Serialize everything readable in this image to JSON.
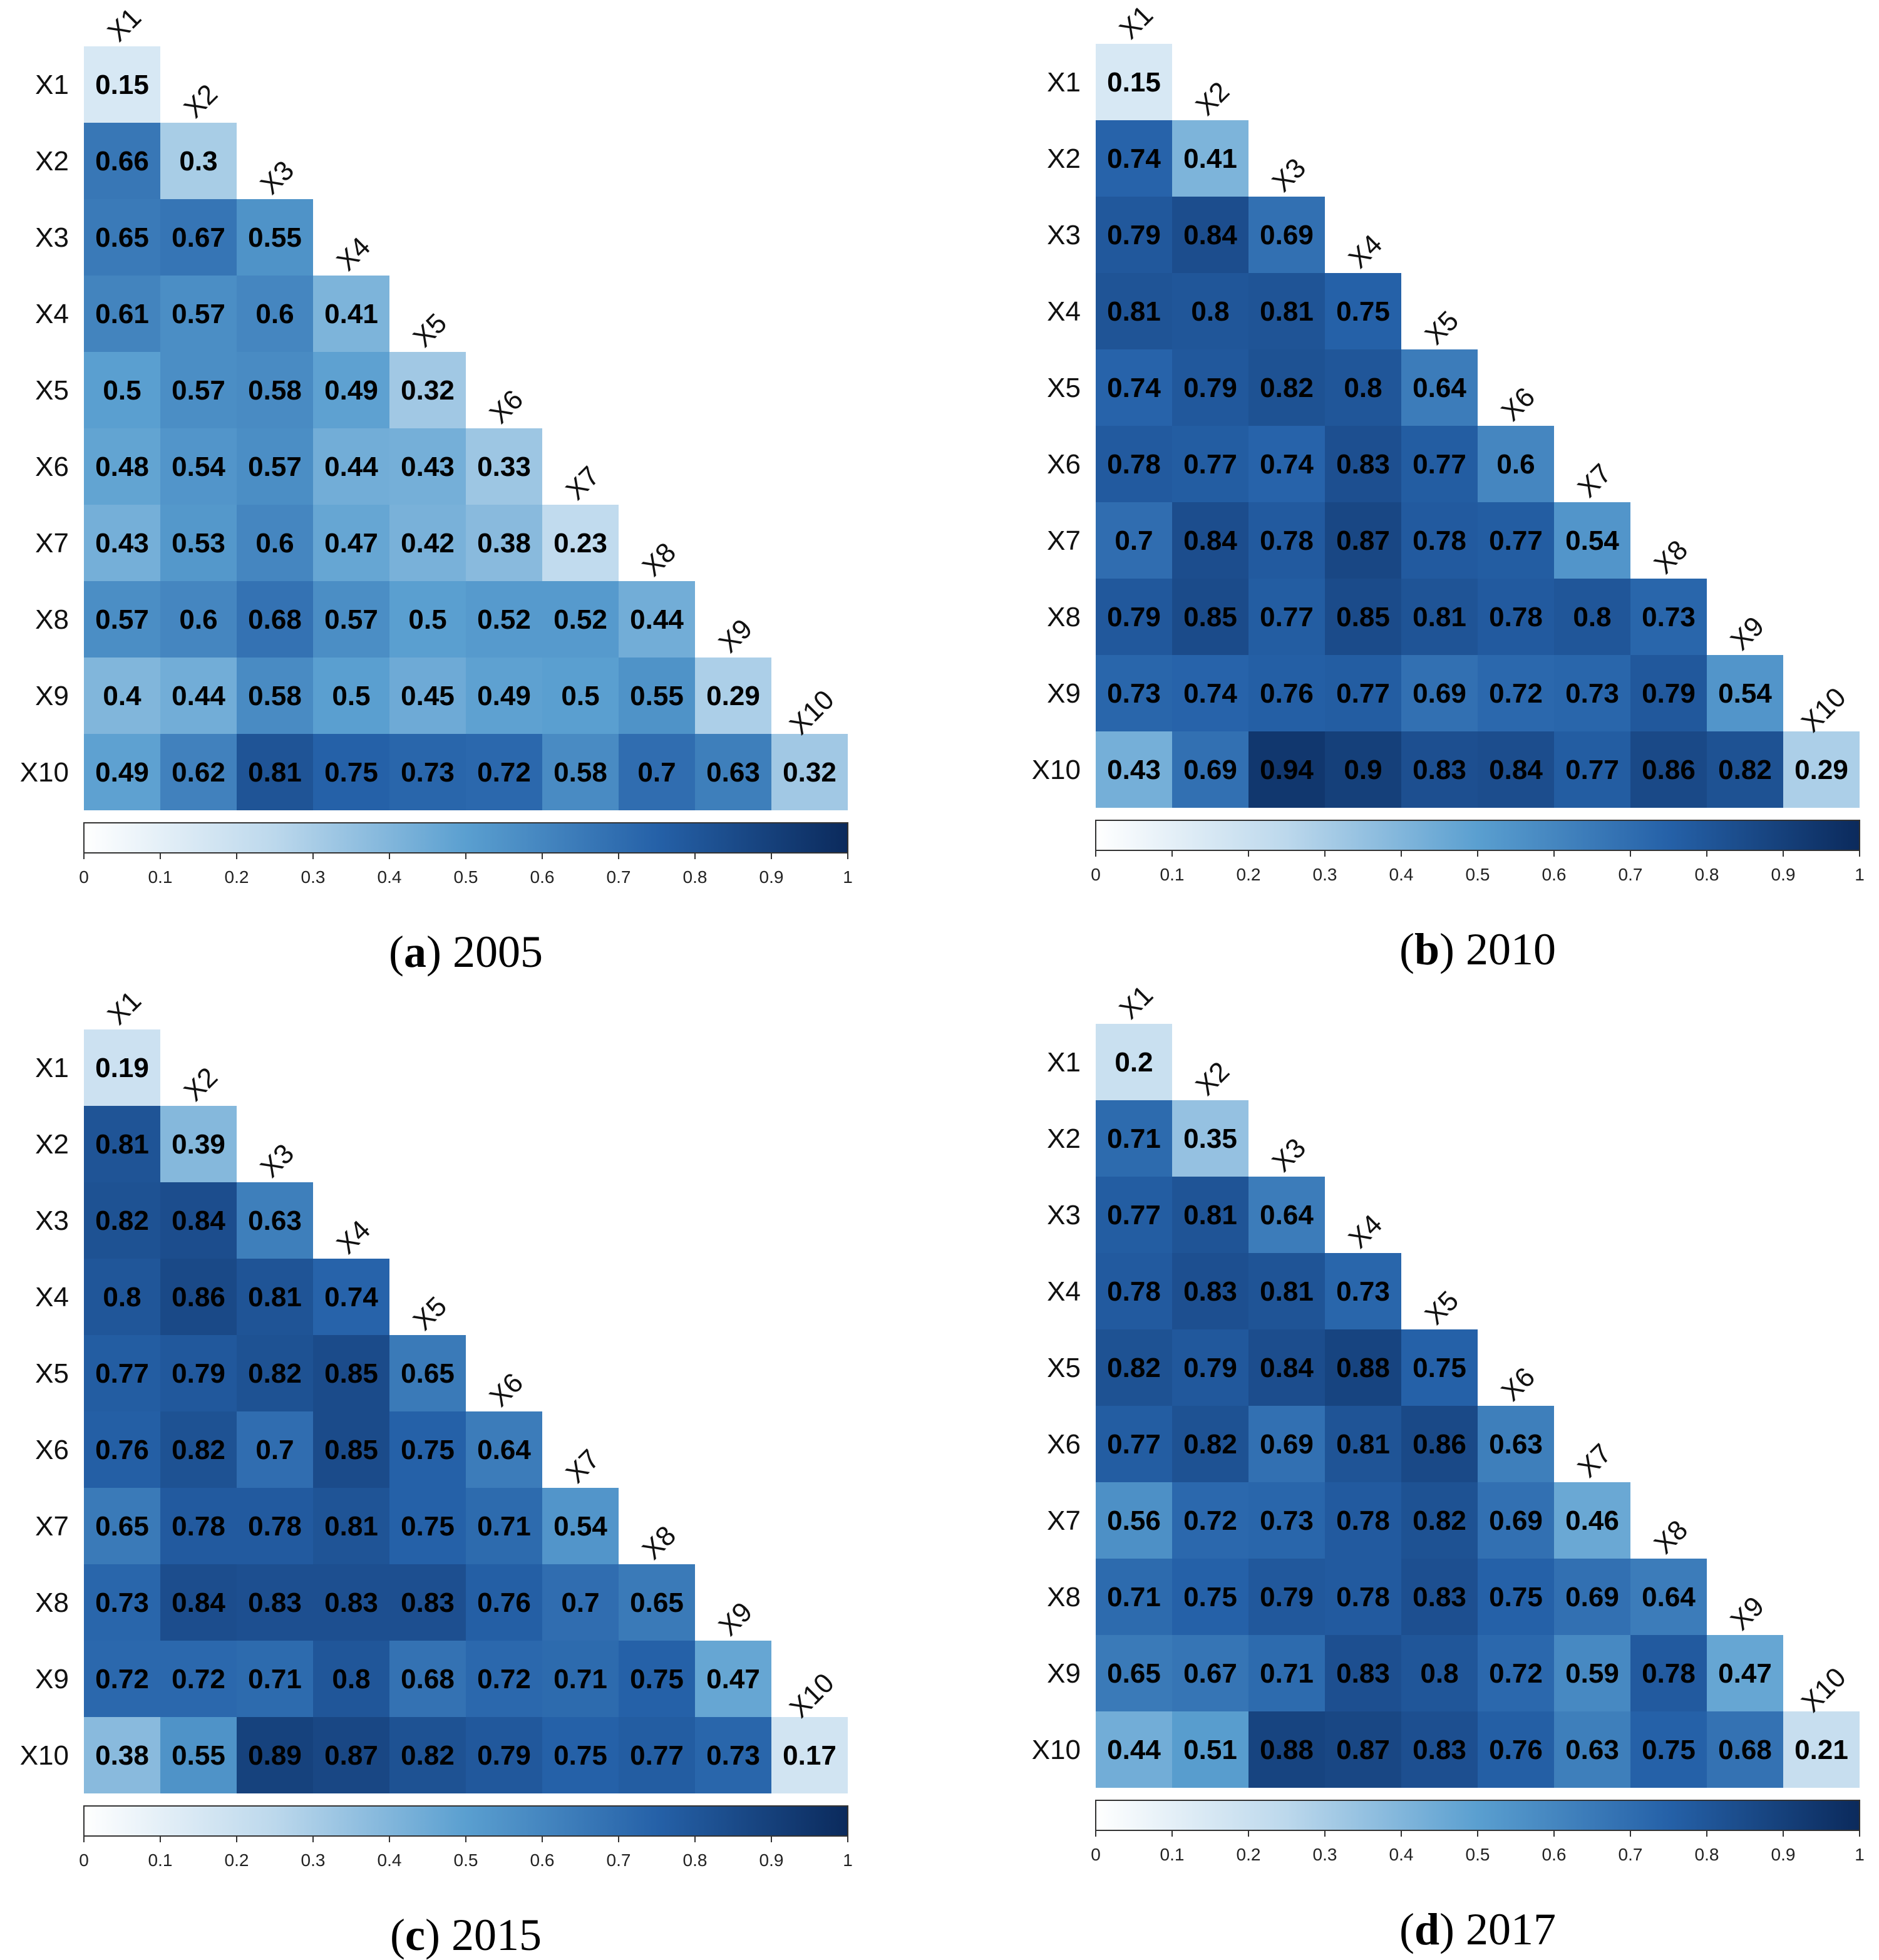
{
  "chart_data": [
    {
      "type": "heatmap",
      "panel_label": "a",
      "title": "2005",
      "labels": [
        "X1",
        "X2",
        "X3",
        "X4",
        "X5",
        "X6",
        "X7",
        "X8",
        "X9",
        "X10"
      ],
      "rows": [
        [
          0.15
        ],
        [
          0.66,
          0.3
        ],
        [
          0.65,
          0.67,
          0.55
        ],
        [
          0.61,
          0.57,
          0.6,
          0.41
        ],
        [
          0.5,
          0.57,
          0.58,
          0.49,
          0.32
        ],
        [
          0.48,
          0.54,
          0.57,
          0.44,
          0.43,
          0.33
        ],
        [
          0.43,
          0.53,
          0.6,
          0.47,
          0.42,
          0.38,
          0.23
        ],
        [
          0.57,
          0.6,
          0.68,
          0.57,
          0.5,
          0.52,
          0.52,
          0.44
        ],
        [
          0.4,
          0.44,
          0.58,
          0.5,
          0.45,
          0.49,
          0.5,
          0.55,
          0.29
        ],
        [
          0.49,
          0.62,
          0.81,
          0.75,
          0.73,
          0.72,
          0.58,
          0.7,
          0.63,
          0.32
        ]
      ],
      "colorbar": {
        "range": [
          0,
          1
        ],
        "ticks": [
          "0",
          "0.1",
          "0.2",
          "0.3",
          "0.4",
          "0.5",
          "0.6",
          "0.7",
          "0.8",
          "0.9",
          "1"
        ]
      }
    },
    {
      "type": "heatmap",
      "panel_label": "b",
      "title": "2010",
      "labels": [
        "X1",
        "X2",
        "X3",
        "X4",
        "X5",
        "X6",
        "X7",
        "X8",
        "X9",
        "X10"
      ],
      "rows": [
        [
          0.15
        ],
        [
          0.74,
          0.41
        ],
        [
          0.79,
          0.84,
          0.69
        ],
        [
          0.81,
          0.8,
          0.81,
          0.75
        ],
        [
          0.74,
          0.79,
          0.82,
          0.8,
          0.64
        ],
        [
          0.78,
          0.77,
          0.74,
          0.83,
          0.77,
          0.6
        ],
        [
          0.7,
          0.84,
          0.78,
          0.87,
          0.78,
          0.77,
          0.54
        ],
        [
          0.79,
          0.85,
          0.77,
          0.85,
          0.81,
          0.78,
          0.8,
          0.73
        ],
        [
          0.73,
          0.74,
          0.76,
          0.77,
          0.69,
          0.72,
          0.73,
          0.79,
          0.54
        ],
        [
          0.43,
          0.69,
          0.94,
          0.9,
          0.83,
          0.84,
          0.77,
          0.86,
          0.82,
          0.29
        ]
      ],
      "colorbar": {
        "range": [
          0,
          1
        ],
        "ticks": [
          "0",
          "0.1",
          "0.2",
          "0.3",
          "0.4",
          "0.5",
          "0.6",
          "0.7",
          "0.8",
          "0.9",
          "1"
        ]
      }
    },
    {
      "type": "heatmap",
      "panel_label": "c",
      "title": "2015",
      "labels": [
        "X1",
        "X2",
        "X3",
        "X4",
        "X5",
        "X6",
        "X7",
        "X8",
        "X9",
        "X10"
      ],
      "rows": [
        [
          0.19
        ],
        [
          0.81,
          0.39
        ],
        [
          0.82,
          0.84,
          0.63
        ],
        [
          0.8,
          0.86,
          0.81,
          0.74
        ],
        [
          0.77,
          0.79,
          0.82,
          0.85,
          0.65
        ],
        [
          0.76,
          0.82,
          0.7,
          0.85,
          0.75,
          0.64
        ],
        [
          0.65,
          0.78,
          0.78,
          0.81,
          0.75,
          0.71,
          0.54
        ],
        [
          0.73,
          0.84,
          0.83,
          0.83,
          0.83,
          0.76,
          0.7,
          0.65
        ],
        [
          0.72,
          0.72,
          0.71,
          0.8,
          0.68,
          0.72,
          0.71,
          0.75,
          0.47
        ],
        [
          0.38,
          0.55,
          0.89,
          0.87,
          0.82,
          0.79,
          0.75,
          0.77,
          0.73,
          0.17
        ]
      ],
      "colorbar": {
        "range": [
          0,
          1
        ],
        "ticks": [
          "0",
          "0.1",
          "0.2",
          "0.3",
          "0.4",
          "0.5",
          "0.6",
          "0.7",
          "0.8",
          "0.9",
          "1"
        ]
      }
    },
    {
      "type": "heatmap",
      "panel_label": "d",
      "title": "2017",
      "labels": [
        "X1",
        "X2",
        "X3",
        "X4",
        "X5",
        "X6",
        "X7",
        "X8",
        "X9",
        "X10"
      ],
      "rows": [
        [
          0.2
        ],
        [
          0.71,
          0.35
        ],
        [
          0.77,
          0.81,
          0.64
        ],
        [
          0.78,
          0.83,
          0.81,
          0.73
        ],
        [
          0.82,
          0.79,
          0.84,
          0.88,
          0.75
        ],
        [
          0.77,
          0.82,
          0.69,
          0.81,
          0.86,
          0.63
        ],
        [
          0.56,
          0.72,
          0.73,
          0.78,
          0.82,
          0.69,
          0.46
        ],
        [
          0.71,
          0.75,
          0.79,
          0.78,
          0.83,
          0.75,
          0.69,
          0.64
        ],
        [
          0.65,
          0.67,
          0.71,
          0.83,
          0.8,
          0.72,
          0.59,
          0.78,
          0.47
        ],
        [
          0.44,
          0.51,
          0.88,
          0.87,
          0.83,
          0.76,
          0.63,
          0.75,
          0.68,
          0.21
        ]
      ],
      "colorbar": {
        "range": [
          0,
          1
        ],
        "ticks": [
          "0",
          "0.1",
          "0.2",
          "0.3",
          "0.4",
          "0.5",
          "0.6",
          "0.7",
          "0.8",
          "0.9",
          "1"
        ]
      }
    }
  ]
}
